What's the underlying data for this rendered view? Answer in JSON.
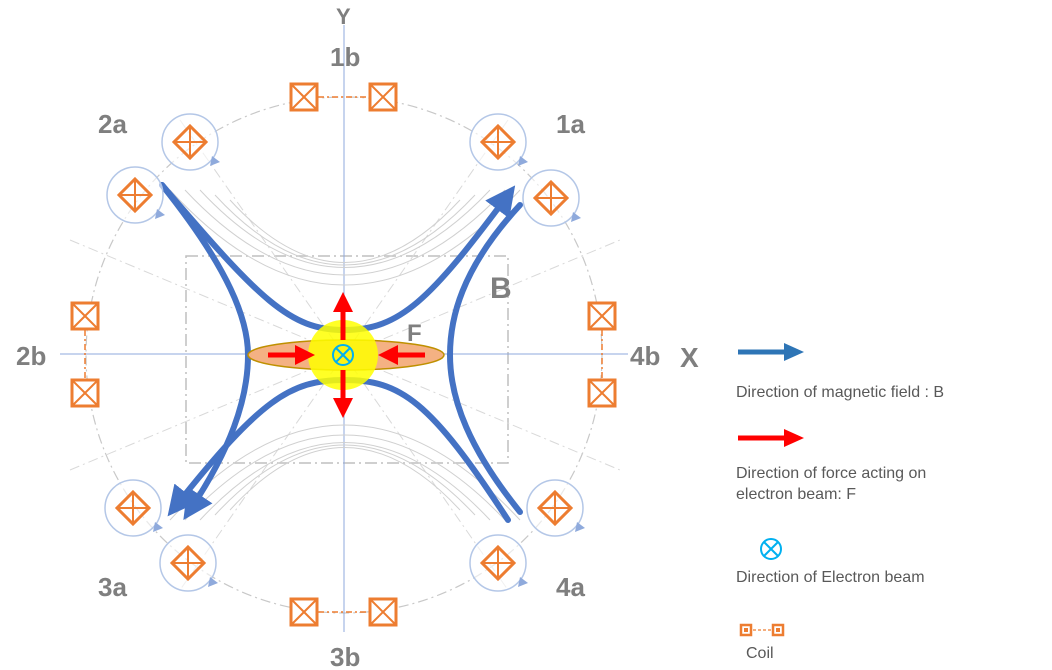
{
  "labels": {
    "axis_y": "Y",
    "axis_x": "X",
    "p1a": "1a",
    "p1b": "1b",
    "p2a": "2a",
    "p2b": "2b",
    "p3a": "3a",
    "p3b": "3b",
    "p4a": "4a",
    "p4b": "4b",
    "field": "B",
    "force": "F"
  },
  "legend": {
    "magnetic_field": "Direction of magnetic field : B",
    "force_line1": "Direction of  force acting on",
    "force_line2": "electron beam:  F",
    "electron_beam": "Direction of Electron beam",
    "coil": "Coil"
  },
  "colors": {
    "field_blue": "#4472c4",
    "force_red": "#ff0000",
    "coil_orange": "#ed7d31",
    "beam_cyan": "#00b0f0",
    "label_gray": "#7f7f7f",
    "center_yellow": "#ffff00",
    "ellipse_orange": "#f4b183"
  }
}
